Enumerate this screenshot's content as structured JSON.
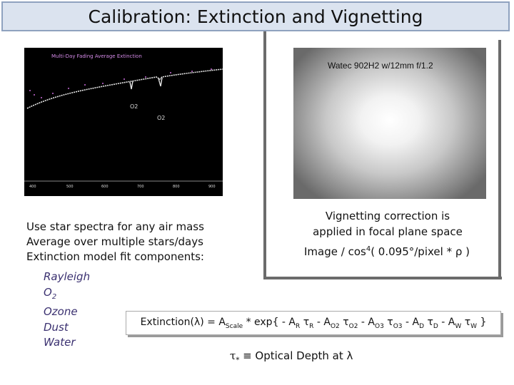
{
  "title": "Calibration:  Extinction  and  Vignetting",
  "spectrum_panel": {
    "title": "Multi-Day Fading Average Extinction",
    "absorption_labels": [
      "O2",
      "O2"
    ],
    "x_ticks": [
      "400",
      "500",
      "600",
      "700",
      "800",
      "900"
    ]
  },
  "vignette_panel": {
    "label": "Watec 902H2  w/12mm f/1.2"
  },
  "left_text": {
    "lines": [
      "Use star spectra for any air mass",
      "Average over multiple stars/days",
      "Extinction model fit components:"
    ]
  },
  "components": {
    "rayleigh": "Rayleigh",
    "o2_base": "O",
    "o2_sub": "2",
    "ozone": "Ozone",
    "dust": "Dust",
    "water": "Water"
  },
  "vignetting_text": {
    "line1": "Vignetting correction is",
    "line2": "applied in focal plane space"
  },
  "vignetting_formula": {
    "pre": "Image / cos",
    "exp": "4",
    "post": "( 0.095°/pixel * ρ )"
  },
  "extinction_formula": {
    "parts": [
      {
        "t": "Extinction(λ)  =  A"
      },
      {
        "s": "Scale"
      },
      {
        "t": " * exp{ - A"
      },
      {
        "s": "R"
      },
      {
        "t": " τ"
      },
      {
        "s": "R"
      },
      {
        "t": " - A"
      },
      {
        "s": "O2"
      },
      {
        "t": " τ"
      },
      {
        "s": "O2"
      },
      {
        "t": " - A"
      },
      {
        "s": "O3"
      },
      {
        "t": " τ"
      },
      {
        "s": "O3"
      },
      {
        "t": " - A"
      },
      {
        "s": "D"
      },
      {
        "t": " τ"
      },
      {
        "s": "D"
      },
      {
        "t": " - A"
      },
      {
        "s": "W"
      },
      {
        "t": " τ"
      },
      {
        "s": "W"
      },
      {
        "t": " }"
      }
    ]
  },
  "tau_definition": {
    "tau": "τ",
    "sub": "*",
    "rest": "  ≡  Optical Depth at λ"
  },
  "colors": {
    "title_bg": "#dbe3ef",
    "title_border": "#8fa2bf",
    "components_text": "#3a3070",
    "spectrum_title": "#d58be8"
  }
}
